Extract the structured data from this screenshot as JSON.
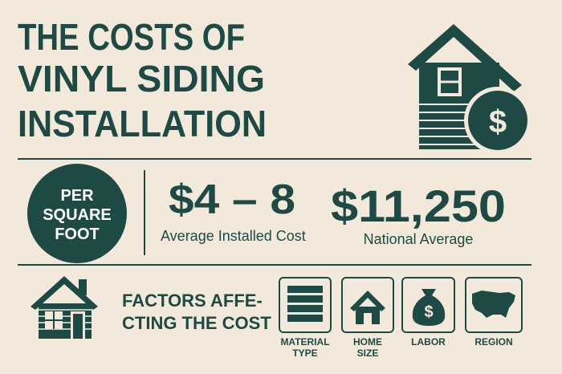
{
  "title": {
    "lines": [
      "THE COSTS OF",
      "VINYL SIDING",
      "INSTALLATION"
    ]
  },
  "badge": {
    "lines": [
      "PER",
      "SQUARE",
      "FOOT"
    ]
  },
  "stats": [
    {
      "value": "$4 – 8",
      "label": "Average Installed Cost"
    },
    {
      "value": "$11,250",
      "label": "National Average"
    }
  ],
  "factors": {
    "heading": [
      "FACTORS AFFE-",
      "CTING THE COST"
    ],
    "items": [
      {
        "lines": [
          "MATERIAL",
          "TYPE"
        ]
      },
      {
        "lines": [
          "HOME",
          "SIZE"
        ]
      },
      {
        "lines": [
          "LABOR"
        ]
      },
      {
        "lines": [
          "REGION"
        ]
      }
    ]
  },
  "icons": {
    "house_badge": "$",
    "labor_bag": "$"
  }
}
